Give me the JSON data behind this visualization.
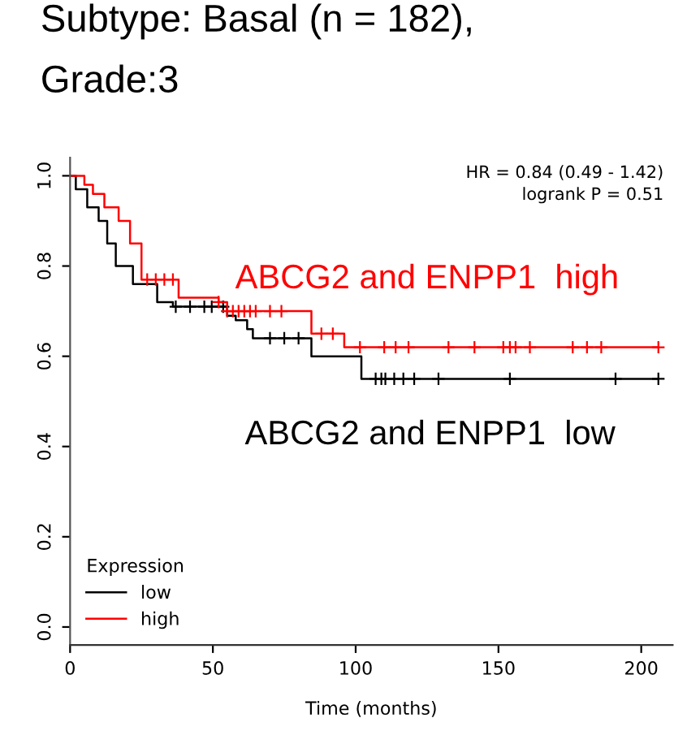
{
  "chart_data": {
    "type": "step",
    "title": "Subtype: Basal (n = 182),\nGrade:3",
    "xlabel": "Time (months)",
    "legend_title": "Expression",
    "legend": "bottom left",
    "grid": false,
    "xlim": [
      0,
      211
    ],
    "ylim": [
      -0.04,
      1.04
    ],
    "xticks": [
      0,
      50,
      100,
      150,
      200
    ],
    "yticks": [
      {
        "value": 0,
        "label": "0.0"
      },
      0.2,
      0.4,
      0.6,
      0.8,
      {
        "value": 1,
        "label": "1.0"
      }
    ],
    "series": [
      {
        "name": "low",
        "color": "#000000",
        "x": [
          0,
          2,
          6,
          10,
          13,
          16,
          22,
          30.5,
          36,
          55,
          58,
          62,
          64,
          84.5,
          102,
          206
        ],
        "values": [
          1.0,
          0.97,
          0.93,
          0.9,
          0.85,
          0.8,
          0.76,
          0.72,
          0.71,
          0.69,
          0.68,
          0.66,
          0.64,
          0.6,
          0.55,
          0.55
        ]
      },
      {
        "name": "high",
        "color": "#ff0000",
        "x": [
          0,
          5,
          8,
          12,
          17,
          21,
          25,
          38,
          52,
          55,
          84.5,
          96,
          206
        ],
        "values": [
          1.0,
          0.98,
          0.96,
          0.93,
          0.9,
          0.85,
          0.77,
          0.73,
          0.72,
          0.7,
          0.65,
          0.62,
          0.62
        ]
      },
      {
        "type": "scatter",
        "color": "#000000",
        "marker": "cross",
        "x": [
          37,
          42,
          47,
          49.6,
          53.6,
          70,
          75,
          80,
          107,
          109,
          110.4,
          113.5,
          116.7,
          120.5,
          129,
          154,
          191,
          206
        ],
        "values": [
          0.71,
          0.71,
          0.71,
          0.71,
          0.71,
          0.64,
          0.64,
          0.64,
          0.55,
          0.55,
          0.55,
          0.55,
          0.55,
          0.55,
          0.55,
          0.55,
          0.55,
          0.55
        ]
      },
      {
        "type": "scatter",
        "color": "#ff0000",
        "marker": "cross",
        "x": [
          27,
          30,
          33,
          36,
          52,
          55,
          57,
          59,
          61,
          63,
          65,
          70,
          74,
          88,
          92,
          101.5,
          110,
          114,
          118.5,
          132.5,
          141.6,
          151.7,
          154,
          156,
          161,
          176,
          181,
          186,
          206
        ],
        "values": [
          0.77,
          0.77,
          0.77,
          0.77,
          0.72,
          0.7,
          0.7,
          0.7,
          0.7,
          0.7,
          0.7,
          0.7,
          0.7,
          0.65,
          0.65,
          0.62,
          0.62,
          0.62,
          0.62,
          0.62,
          0.62,
          0.62,
          0.62,
          0.62,
          0.62,
          0.62,
          0.62,
          0.62,
          0.62
        ]
      }
    ],
    "annotations": [
      "HR = 0.84 (0.49 - 1.42)",
      "logrank P = 0.51",
      "ABCG2 and ENPP1  high",
      "ABCG2 and ENPP1  low"
    ]
  }
}
